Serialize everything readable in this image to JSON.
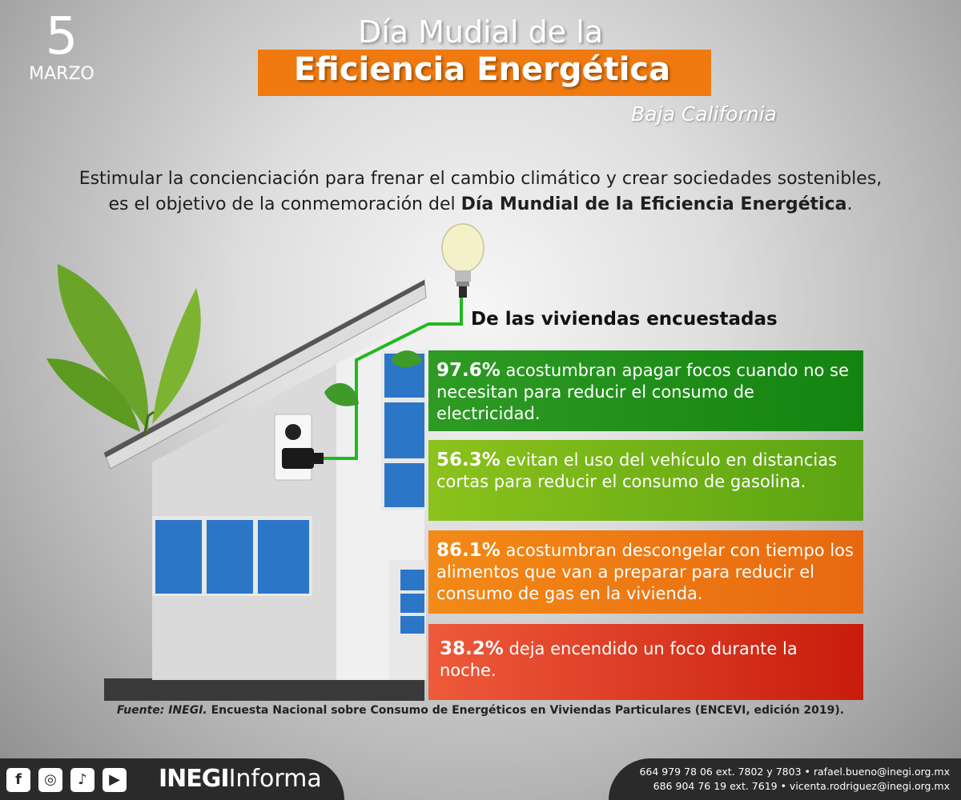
{
  "date": {
    "day": "5",
    "month": "MARZO"
  },
  "header": {
    "title_line1": "Día Mudial de la",
    "title_line2": "Eficiencia Energética",
    "region": "Baja California"
  },
  "intro": {
    "line1": "Estimular la concienciación para frenar el cambio climático y crear sociedades sostenibles,",
    "line2_prefix": "es el objetivo de la conmemoración del ",
    "line2_bold": "Día Mundial de la Eficiencia Energética",
    "line2_suffix": "."
  },
  "survey": {
    "subtitle": "De las viviendas encuestadas",
    "stats": [
      {
        "value": "97.6%",
        "text": " acostumbran apagar focos cuando no se necesitan para reducir el consumo de electricidad.",
        "color": "#1a8a14"
      },
      {
        "value": "56.3%",
        "text": "  evitan el uso del vehículo en distancias cortas para reducir el consumo de gasolina.",
        "color": "#6fb415"
      },
      {
        "value": "86.1%",
        "text": " acostumbran descongelar con tiempo los alimentos que van a preparar para reducir el consumo de gas en la vivienda.",
        "color": "#ec7812"
      },
      {
        "value": "38.2%",
        "text": " deja encendido un foco durante la noche.",
        "color": "#d42a14"
      }
    ]
  },
  "source": {
    "label": "Fuente: INEGI.",
    "text": " Encuesta Nacional sobre Consumo de Energéticos en Viviendas Particulares (ENCEVI, edición 2019)."
  },
  "footer": {
    "social_icons": [
      "facebook-icon",
      "instagram-icon",
      "twitter-icon",
      "youtube-icon"
    ],
    "brand_bold": "INEGI",
    "brand_light": "Informa",
    "contact_line1": "664 979 78 06 ext. 7802 y 7803 • rafael.bueno@inegi.org.mx",
    "contact_line2": "686 904 76 19 ext. 7619 • vicenta.rodriguez@inegi.org.mx"
  }
}
